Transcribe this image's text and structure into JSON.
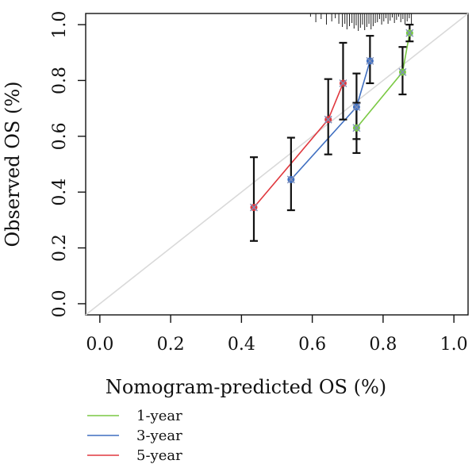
{
  "chart_data": {
    "type": "line",
    "xlabel": "Nomogram-predicted OS (%)",
    "ylabel": "Observed OS (%)",
    "xlim": [
      -0.04,
      1.04
    ],
    "ylim": [
      -0.04,
      1.04
    ],
    "x_ticks": [
      "0.0",
      "0.2",
      "0.4",
      "0.6",
      "0.8",
      "1.0"
    ],
    "y_ticks": [
      "0.0",
      "0.2",
      "0.4",
      "0.6",
      "0.8",
      "1.0"
    ],
    "grid": false,
    "reference_line": {
      "from": [
        0,
        0
      ],
      "to": [
        1,
        1
      ],
      "color": "#d9d9d9"
    },
    "legend_position": "bottom-left",
    "series": [
      {
        "name": "1-year",
        "color": "#7ac943",
        "points": [
          {
            "x": 0.725,
            "y": 0.63,
            "lo": 0.54,
            "hi": 0.72
          },
          {
            "x": 0.855,
            "y": 0.83,
            "lo": 0.75,
            "hi": 0.92
          },
          {
            "x": 0.875,
            "y": 0.97,
            "lo": 0.94,
            "hi": 1.0
          }
        ]
      },
      {
        "name": "3-year",
        "color": "#3f6fc1",
        "points": [
          {
            "x": 0.54,
            "y": 0.445,
            "lo": 0.335,
            "hi": 0.595
          },
          {
            "x": 0.725,
            "y": 0.705,
            "lo": 0.59,
            "hi": 0.825
          },
          {
            "x": 0.763,
            "y": 0.87,
            "lo": 0.79,
            "hi": 0.96
          }
        ]
      },
      {
        "name": "5-year",
        "color": "#e0383e",
        "points": [
          {
            "x": 0.435,
            "y": 0.345,
            "lo": 0.225,
            "hi": 0.525
          },
          {
            "x": 0.645,
            "y": 0.66,
            "lo": 0.535,
            "hi": 0.805
          },
          {
            "x": 0.687,
            "y": 0.79,
            "lo": 0.66,
            "hi": 0.935
          }
        ]
      }
    ],
    "rug_x": [
      0.595,
      0.61,
      0.625,
      0.64,
      0.655,
      0.665,
      0.675,
      0.685,
      0.692,
      0.698,
      0.705,
      0.712,
      0.718,
      0.724,
      0.73,
      0.736,
      0.742,
      0.748,
      0.754,
      0.76,
      0.766,
      0.772,
      0.778,
      0.784,
      0.79,
      0.796,
      0.802,
      0.808,
      0.814,
      0.82,
      0.826,
      0.832,
      0.838,
      0.844,
      0.85,
      0.856,
      0.862,
      0.868,
      0.874,
      0.88
    ]
  }
}
